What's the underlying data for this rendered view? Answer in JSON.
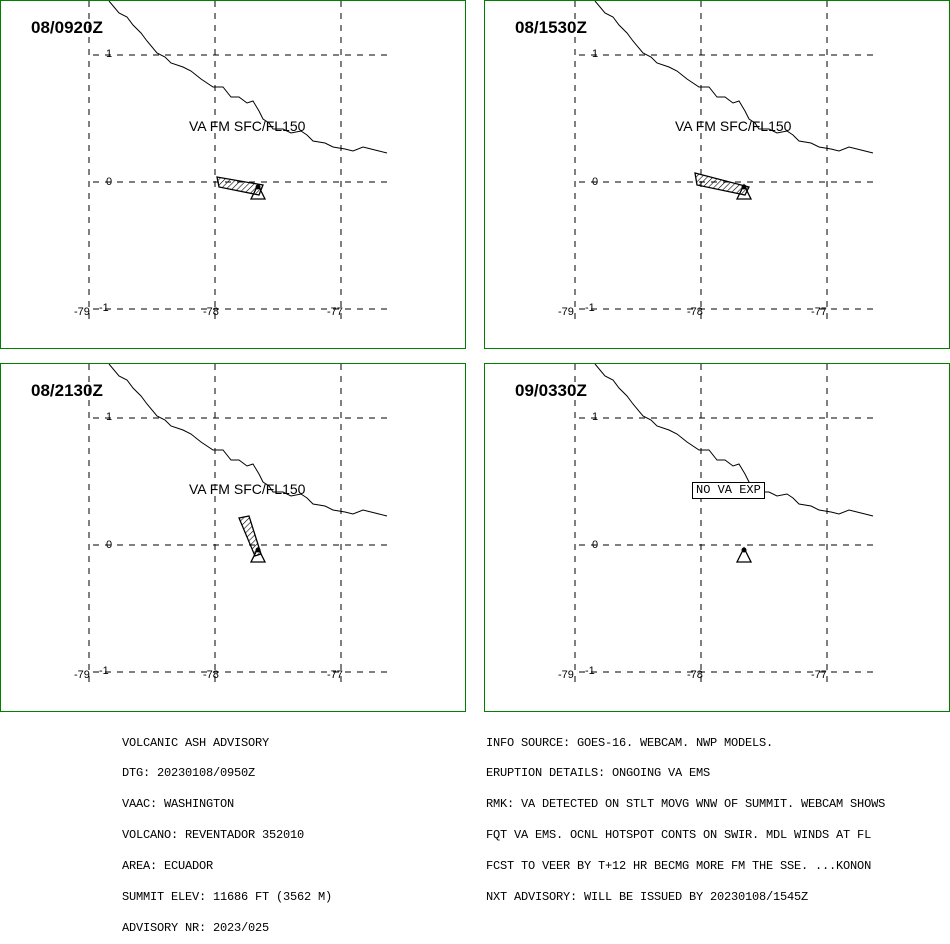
{
  "colors": {
    "panel_border": "#008000",
    "coast": "#000000",
    "grid": "#000000",
    "ash": "#000000"
  },
  "grid": {
    "lat_labels": [
      "1",
      "0",
      "-1"
    ],
    "lon_labels": [
      "-79",
      "-78",
      "-77"
    ]
  },
  "panels": [
    {
      "time": "08/0920Z",
      "va_text": "VA FM SFC/FL150",
      "ash_shape": "plume-west"
    },
    {
      "time": "08/1530Z",
      "va_text": "VA FM SFC/FL150",
      "ash_shape": "plume-west-wide"
    },
    {
      "time": "08/2130Z",
      "va_text": "VA FM SFC/FL150",
      "ash_shape": "plume-north"
    },
    {
      "time": "09/0330Z",
      "va_text": "NO VA EXP",
      "ash_shape": "none"
    }
  ],
  "volcano_marker_icon": "triangle-icon",
  "advisory_left": [
    "VOLCANIC ASH ADVISORY",
    "DTG: 20230108/0950Z",
    "VAAC: WASHINGTON",
    "VOLCANO: REVENTADOR 352010",
    "AREA: ECUADOR",
    "SUMMIT ELEV: 11686 FT (3562 M)",
    "ADVISORY NR: 2023/025"
  ],
  "advisory_right": [
    "INFO SOURCE: GOES-16. WEBCAM. NWP MODELS.",
    "ERUPTION DETAILS: ONGOING VA EMS",
    "RMK: VA DETECTED ON STLT MOVG WNW OF SUMMIT. WEBCAM SHOWS",
    "FQT VA EMS. OCNL HOTSPOT CONTS ON SWIR. MDL WINDS AT FL",
    "FCST TO VEER BY T+12 HR BECMG MORE FM THE SSE. ...KONON",
    "NXT ADVISORY: WILL BE ISSUED BY 20230108/1545Z"
  ]
}
